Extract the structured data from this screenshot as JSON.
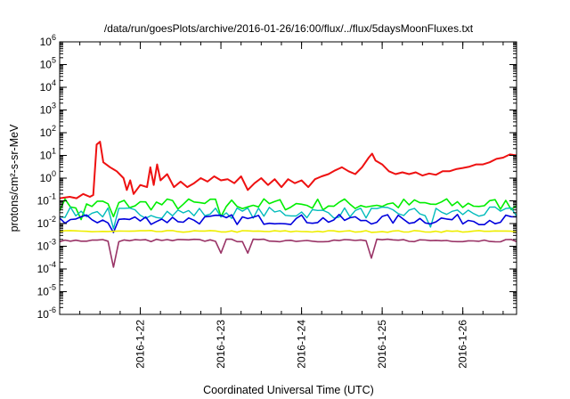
{
  "chart_data": {
    "type": "line",
    "title": "/data/run/goesPlots/archive/2016-01-26/16:00/flux/../flux/5daysMoonFluxes.txt",
    "xlabel": "Coordinated Universal Time (UTC)",
    "ylabel": "protons/cm²-s-sr-MeV",
    "yscale": "log",
    "ylim_exponents": [
      -6,
      6
    ],
    "xlim": [
      "2016-01-21T00:00",
      "2016-01-26T16:00"
    ],
    "x_ticks": [
      "2016-1-22",
      "2016-1-23",
      "2016-1-24",
      "2016-1-25",
      "2016-1-26"
    ],
    "grid": false,
    "legend": "none",
    "series": [
      {
        "color": "#ee1111",
        "width": 2,
        "points": [
          [
            "2016-01-21T00:00",
            0.13
          ],
          [
            "2016-01-21T03:00",
            0.15
          ],
          [
            "2016-01-21T05:00",
            0.13
          ],
          [
            "2016-01-21T07:00",
            0.2
          ],
          [
            "2016-01-21T09:00",
            0.15
          ],
          [
            "2016-01-21T10:00",
            0.18
          ],
          [
            "2016-01-21T11:00",
            30
          ],
          [
            "2016-01-21T12:00",
            40
          ],
          [
            "2016-01-21T13:00",
            5
          ],
          [
            "2016-01-21T15:00",
            3
          ],
          [
            "2016-01-21T17:00",
            2
          ],
          [
            "2016-01-21T19:00",
            1
          ],
          [
            "2016-01-21T20:00",
            0.3
          ],
          [
            "2016-01-21T21:00",
            0.8
          ],
          [
            "2016-01-21T22:00",
            0.2
          ],
          [
            "2016-01-22T00:00",
            0.5
          ],
          [
            "2016-01-22T02:00",
            0.4
          ],
          [
            "2016-01-22T03:00",
            3
          ],
          [
            "2016-01-22T04:00",
            0.5
          ],
          [
            "2016-01-22T05:00",
            4
          ],
          [
            "2016-01-22T06:00",
            0.8
          ],
          [
            "2016-01-22T08:00",
            1.5
          ],
          [
            "2016-01-22T10:00",
            0.4
          ],
          [
            "2016-01-22T12:00",
            0.7
          ],
          [
            "2016-01-22T14:00",
            0.4
          ],
          [
            "2016-01-22T16:00",
            0.6
          ],
          [
            "2016-01-22T18:00",
            1.0
          ],
          [
            "2016-01-22T20:00",
            0.7
          ],
          [
            "2016-01-22T22:00",
            1.2
          ],
          [
            "2016-01-23T00:00",
            0.8
          ],
          [
            "2016-01-23T02:00",
            0.9
          ],
          [
            "2016-01-23T04:00",
            0.6
          ],
          [
            "2016-01-23T06:00",
            1.2
          ],
          [
            "2016-01-23T08:00",
            0.3
          ],
          [
            "2016-01-23T10:00",
            0.6
          ],
          [
            "2016-01-23T12:00",
            1.0
          ],
          [
            "2016-01-23T14:00",
            0.5
          ],
          [
            "2016-01-23T16:00",
            0.9
          ],
          [
            "2016-01-23T18:00",
            0.4
          ],
          [
            "2016-01-23T20:00",
            0.9
          ],
          [
            "2016-01-23T22:00",
            0.6
          ],
          [
            "2016-01-24T00:00",
            0.8
          ],
          [
            "2016-01-24T02:00",
            0.4
          ],
          [
            "2016-01-24T04:00",
            0.9
          ],
          [
            "2016-01-24T06:00",
            1.2
          ],
          [
            "2016-01-24T08:00",
            1.5
          ],
          [
            "2016-01-24T10:00",
            2.2
          ],
          [
            "2016-01-24T12:00",
            3.0
          ],
          [
            "2016-01-24T14:00",
            2.0
          ],
          [
            "2016-01-24T16:00",
            1.5
          ],
          [
            "2016-01-24T18:00",
            3.0
          ],
          [
            "2016-01-24T20:00",
            8
          ],
          [
            "2016-01-24T21:00",
            12
          ],
          [
            "2016-01-24T22:00",
            6
          ],
          [
            "2016-01-25T00:00",
            4
          ],
          [
            "2016-01-25T02:00",
            2
          ],
          [
            "2016-01-25T04:00",
            1.5
          ],
          [
            "2016-01-25T06:00",
            1.8
          ],
          [
            "2016-01-25T08:00",
            1.5
          ],
          [
            "2016-01-25T10:00",
            1.8
          ],
          [
            "2016-01-25T12:00",
            1.3
          ],
          [
            "2016-01-25T14:00",
            1.6
          ],
          [
            "2016-01-25T16:00",
            1.4
          ],
          [
            "2016-01-25T18:00",
            2.0
          ],
          [
            "2016-01-25T20:00",
            2.0
          ],
          [
            "2016-01-25T22:00",
            2.5
          ],
          [
            "2016-01-26T00:00",
            2.8
          ],
          [
            "2016-01-26T02:00",
            3.2
          ],
          [
            "2016-01-26T04:00",
            4
          ],
          [
            "2016-01-26T06:00",
            4
          ],
          [
            "2016-01-26T08:00",
            5
          ],
          [
            "2016-01-26T10:00",
            7
          ],
          [
            "2016-01-26T12:00",
            8
          ],
          [
            "2016-01-26T14:00",
            11
          ],
          [
            "2016-01-26T16:00",
            10
          ]
        ]
      },
      {
        "color": "#00ee00",
        "width": 1.6,
        "level": 0.07,
        "noise": 0.55,
        "dips": [
          [
            "2016-01-21T06:00",
            0.015
          ],
          [
            "2016-01-21T16:00",
            0.02
          ],
          [
            "2016-01-23T00:00",
            0.02
          ],
          [
            "2016-01-24T20:00",
            0.012
          ],
          [
            "2016-01-25T12:00",
            0.02
          ]
        ]
      },
      {
        "color": "#00bbbb",
        "width": 1.4,
        "level": 0.03,
        "noise": 0.5,
        "dips": [
          [
            "2016-01-21T16:00",
            0.006
          ],
          [
            "2016-01-24T20:00",
            0.005
          ],
          [
            "2016-01-25T14:00",
            0.007
          ]
        ]
      },
      {
        "color": "#0000dd",
        "width": 1.6,
        "level": 0.015,
        "noise": 0.45,
        "dips": [
          [
            "2016-01-21T16:00",
            0.004
          ],
          [
            "2016-01-24T20:00",
            0.003
          ]
        ]
      },
      {
        "color": "#eeee00",
        "width": 1.6,
        "level": 0.0045,
        "noise": 0.08,
        "dips": []
      },
      {
        "color": "#993366",
        "width": 1.6,
        "level": 0.0018,
        "noise": 0.12,
        "dips": [
          [
            "2016-01-21T16:00",
            0.00012
          ],
          [
            "2016-01-23T00:00",
            0.0005
          ],
          [
            "2016-01-23T08:00",
            0.0005
          ],
          [
            "2016-01-24T20:00",
            0.0003
          ],
          [
            "2016-01-24T21:00",
            0.0003
          ]
        ]
      }
    ]
  }
}
